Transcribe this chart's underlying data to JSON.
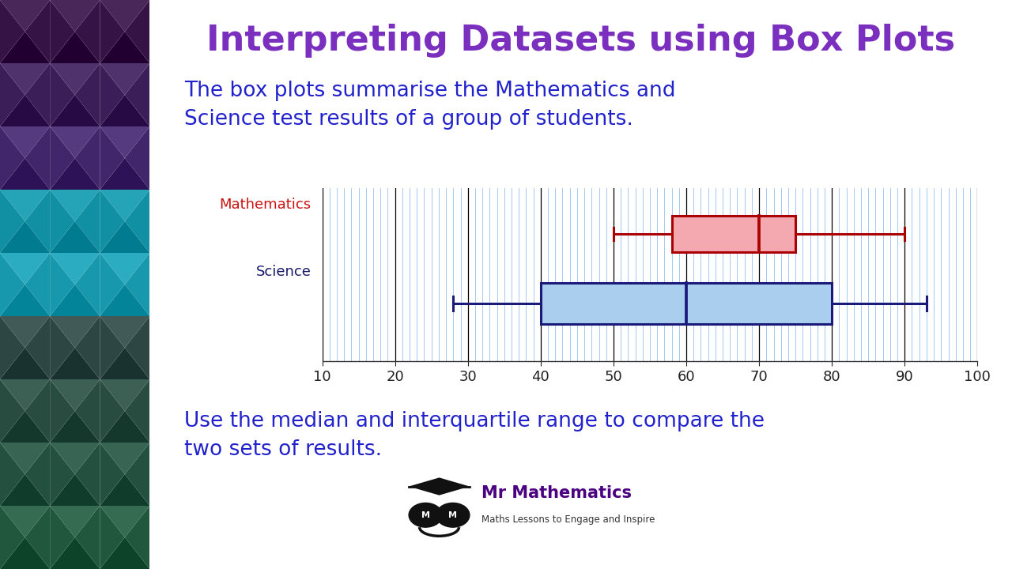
{
  "title": "Interpreting Datasets using Box Plots",
  "title_color": "#7B2FBE",
  "subtitle": "The box plots summarise the Mathematics and\nScience test results of a group of students.",
  "subtitle_color": "#2222CC",
  "footer_text": "Use the median and interquartile range to compare the\ntwo sets of results.",
  "footer_color": "#2222CC",
  "math_label": "Mathematics",
  "math_label_color": "#CC1111",
  "science_label": "Science",
  "science_label_color": "#1A1A6A",
  "math_box": {
    "min": 50,
    "q1": 58,
    "median": 70,
    "q3": 75,
    "max": 90,
    "face_color": "#F4A8B0",
    "edge_color": "#AA0000",
    "line_width": 2.2
  },
  "science_box": {
    "min": 28,
    "q1": 40,
    "median": 60,
    "q3": 80,
    "max": 93,
    "face_color": "#AACFEE",
    "edge_color": "#1A1A7A",
    "line_width": 2.2
  },
  "xmin": 10,
  "xmax": 100,
  "xticks": [
    10,
    20,
    30,
    40,
    50,
    60,
    70,
    80,
    90,
    100
  ],
  "bg_color": "#FFFFFF",
  "grid_color_light": "#A8C8F0",
  "grid_color_dark": "#000000",
  "panel_colors_top": [
    "#2A5A50",
    "#2A6050",
    "#306858",
    "#3A7060",
    "#2A6868"
  ],
  "panel_colors_mid": [
    "#208090",
    "#2090A0",
    "#2898A8",
    "#18A0B0",
    "#10A8B8"
  ],
  "panel_colors_bot": [
    "#1A2060",
    "#201868",
    "#2A1870",
    "#301060",
    "#200858"
  ]
}
